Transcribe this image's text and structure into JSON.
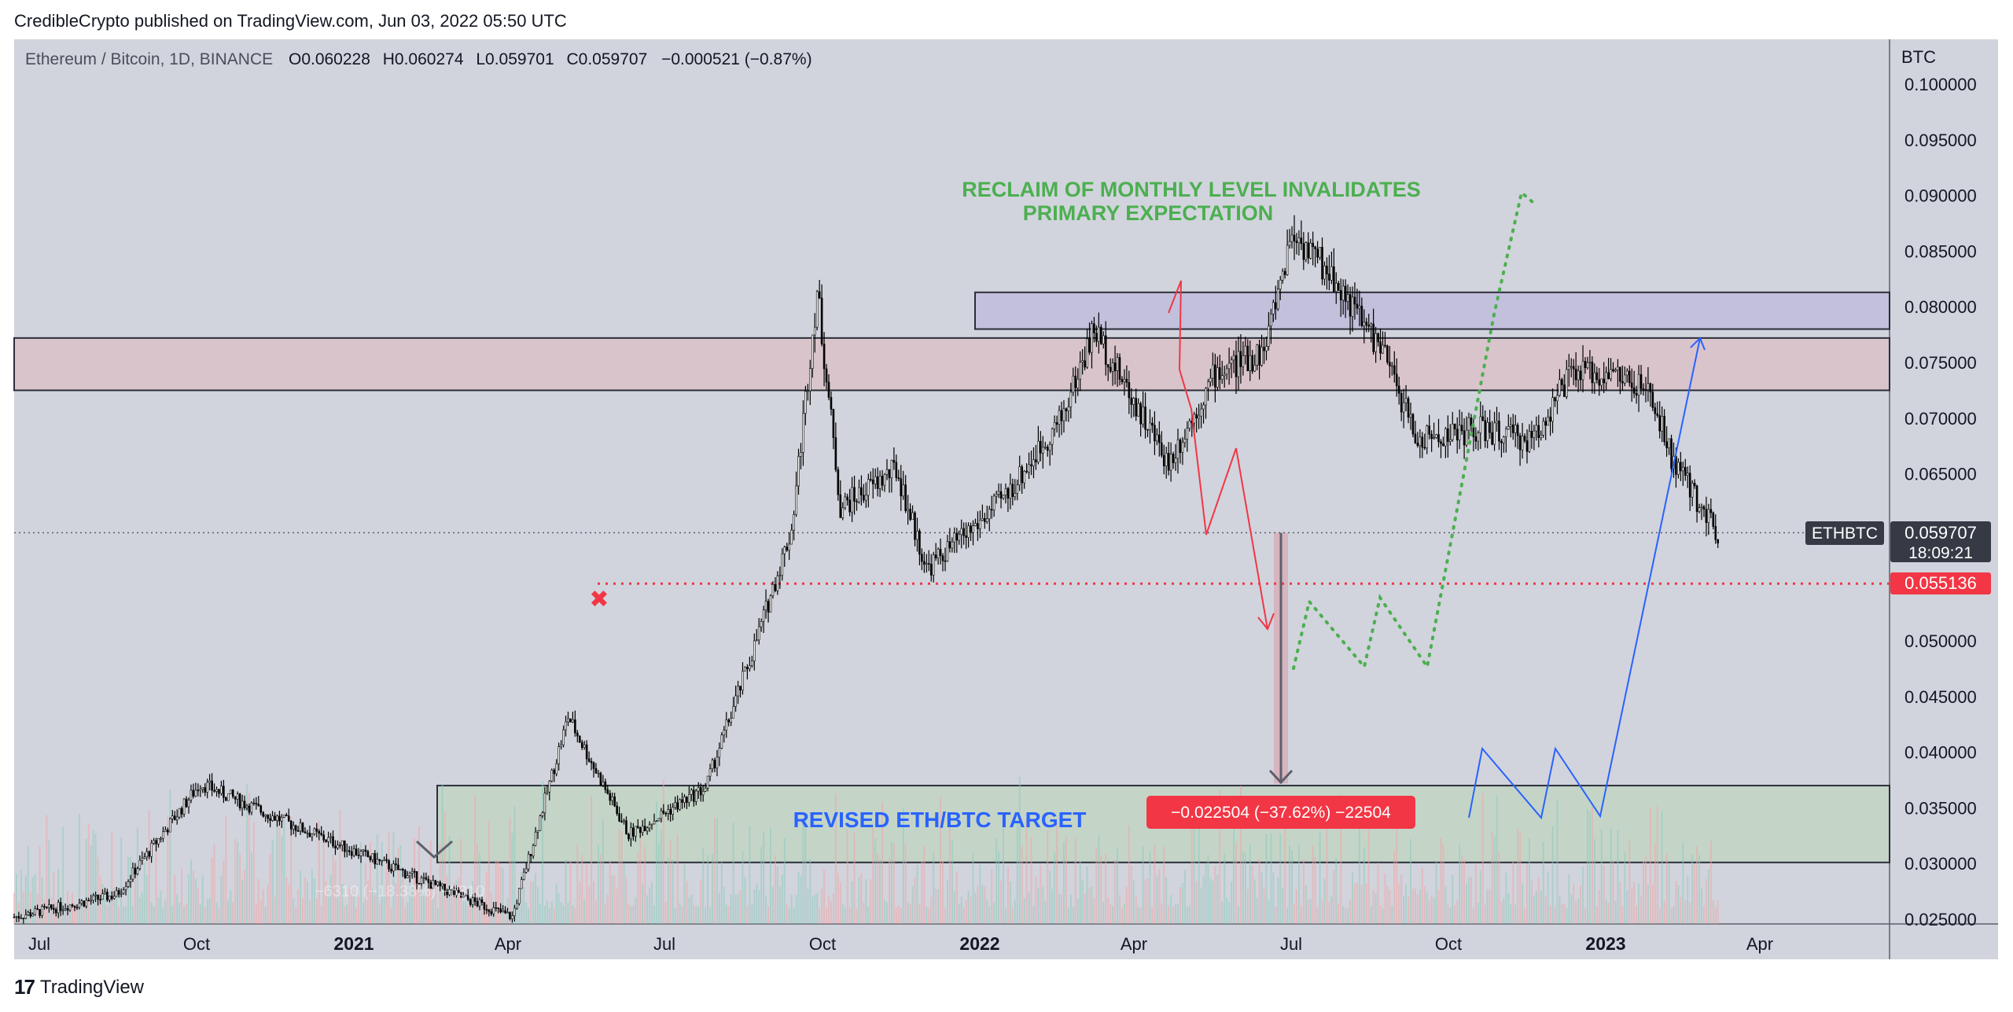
{
  "attribution": "CredibleCrypto published on TradingView.com, Jun 03, 2022 05:50 UTC",
  "footer_brand": "TradingView",
  "symbol_header": {
    "title": "Ethereum / Bitcoin, 1D, BINANCE",
    "open_label": "O",
    "open": "0.060228",
    "high_label": "H",
    "high": "0.060274",
    "low_label": "L",
    "low": "0.059701",
    "close_label": "C",
    "close": "0.059707",
    "change": "−0.000521 (−0.87%)"
  },
  "price_axis": {
    "unit": "BTC",
    "ticks": [
      "0.100000",
      "0.095000",
      "0.090000",
      "0.085000",
      "0.080000",
      "0.075000",
      "0.070000",
      "0.065000",
      "0.060000",
      "0.055000",
      "0.050000",
      "0.045000",
      "0.040000",
      "0.035000",
      "0.030000",
      "0.025000"
    ]
  },
  "time_axis": {
    "labels": [
      {
        "text": "Jul",
        "bold": false
      },
      {
        "text": "Oct",
        "bold": false
      },
      {
        "text": "2021",
        "bold": true
      },
      {
        "text": "Apr",
        "bold": false
      },
      {
        "text": "Jul",
        "bold": false
      },
      {
        "text": "Oct",
        "bold": false
      },
      {
        "text": "2022",
        "bold": true
      },
      {
        "text": "Apr",
        "bold": false
      },
      {
        "text": "Jul",
        "bold": false
      },
      {
        "text": "Oct",
        "bold": false
      },
      {
        "text": "2023",
        "bold": true
      },
      {
        "text": "Apr",
        "bold": false
      }
    ]
  },
  "last_price_tag": {
    "symbol": "ETHBTC",
    "price": "0.059707",
    "countdown": "18:09:21"
  },
  "level_tag": {
    "price": "0.055136"
  },
  "annotations": {
    "green_note_line1": "RECLAIM OF MONTHLY LEVEL INVALIDATES",
    "green_note_line2": "PRIMARY EXPECTATION",
    "target_label": "REVISED ETH/BTC TARGET",
    "measure_label": "−0.022504 (−37.62%) −22504",
    "faded_measure": "−6310 (−18.38%) −6310"
  },
  "zones": [
    {
      "name": "monthly-resistance",
      "from": 0.0725,
      "to": 0.0772,
      "color": "#d9c4cc"
    },
    {
      "name": "upper-box",
      "from": 0.078,
      "to": 0.0813,
      "color": "#c3c0dc"
    },
    {
      "name": "target-zone",
      "from": 0.0301,
      "to": 0.037,
      "color": "#c4d5c8"
    }
  ],
  "colors": {
    "plot_bg": "#d1d4dc",
    "green_text": "#4caf50",
    "blue_text": "#2962ff",
    "red": "#f23645",
    "price_tag": "#363a45",
    "blue_path": "#2962ff"
  },
  "chart_data": {
    "type": "line",
    "title": "Ethereum / Bitcoin, 1D, BINANCE",
    "xlabel": "",
    "ylabel": "BTC",
    "ylim": [
      0.0245,
      0.1025
    ],
    "x": [
      "2020-06-01",
      "2020-07-15",
      "2020-08-20",
      "2020-09-25",
      "2020-11-01",
      "2020-12-10",
      "2021-01-01",
      "2021-01-25",
      "2021-02-20",
      "2021-03-25",
      "2021-04-15",
      "2021-05-01",
      "2021-05-12",
      "2021-05-22",
      "2021-06-15",
      "2021-06-28",
      "2021-07-20",
      "2021-08-01",
      "2021-08-25",
      "2021-09-08",
      "2021-10-10",
      "2021-10-30",
      "2021-11-20",
      "2021-12-02",
      "2021-12-20",
      "2022-01-10",
      "2022-01-25",
      "2022-02-20",
      "2022-03-15",
      "2022-04-01",
      "2022-04-20",
      "2022-05-05",
      "2022-05-15",
      "2022-06-03"
    ],
    "series": [
      {
        "values": [
          0.0252,
          0.0272,
          0.0372,
          0.0338,
          0.0305,
          0.027,
          0.0252,
          0.0432,
          0.0326,
          0.0368,
          0.0495,
          0.06,
          0.0815,
          0.062,
          0.0654,
          0.0565,
          0.0605,
          0.063,
          0.07,
          0.078,
          0.066,
          0.074,
          0.076,
          0.0868,
          0.0825,
          0.076,
          0.068,
          0.069,
          0.068,
          0.074,
          0.074,
          0.072,
          0.066,
          0.0597
        ]
      }
    ],
    "key_levels": [
      {
        "label": "monthly level",
        "value": 0.055136
      }
    ],
    "measured_move": {
      "from": 0.0597,
      "to": 0.0372,
      "change": "−0.022504 (−37.62%)"
    }
  }
}
